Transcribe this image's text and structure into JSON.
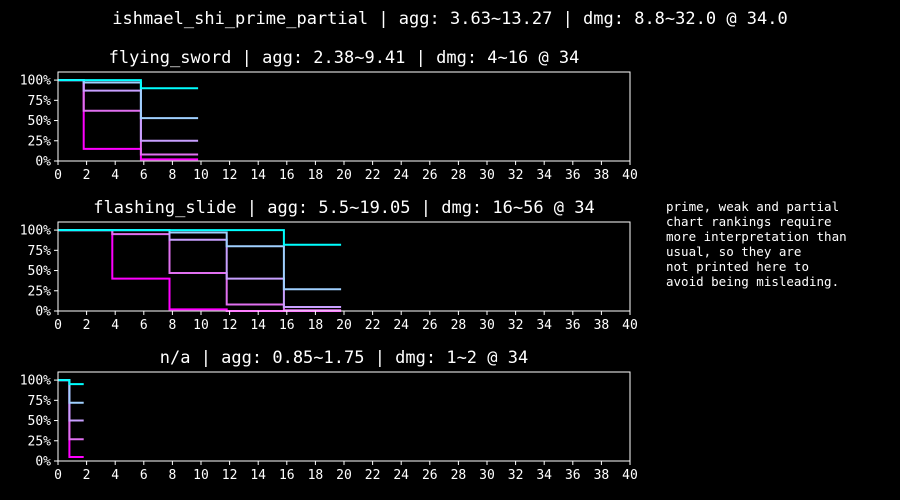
{
  "suptitle": "ishmael_shi_prime_partial | agg: 3.63~13.27 | dmg: 8.8~32.0 @ 34.0",
  "note": "prime, weak and partial\nchart rankings require\nmore interpretation than\nusual, so they are\nnot printed here to\navoid being misleading.",
  "colors": {
    "background": "#000000",
    "axes": "#ffffff",
    "text": "#ffffff"
  },
  "chart_data": [
    {
      "type": "line",
      "step": true,
      "title": "flying_sword | agg: 2.38~9.41 | dmg: 4~16 @ 34",
      "xlim": [
        0,
        40
      ],
      "ylim": [
        0,
        1.1
      ],
      "x_ticks": [
        "0",
        "2",
        "4",
        "6",
        "8",
        "10",
        "12",
        "14",
        "16",
        "18",
        "20",
        "22",
        "24",
        "26",
        "28",
        "30",
        "32",
        "34",
        "36",
        "38",
        "40"
      ],
      "y_ticks": [
        "0%",
        "25%",
        "50%",
        "75%",
        "100%"
      ],
      "y_tick_values": [
        0,
        0.25,
        0.5,
        0.75,
        1.0
      ],
      "series": [
        {
          "color": "#ff00ff",
          "x": [
            0,
            1.8,
            1.8,
            5.8,
            5.8,
            9.8
          ],
          "y": [
            1.0,
            1.0,
            0.15,
            0.15,
            0.02,
            0.02
          ]
        },
        {
          "color": "#e070f0",
          "x": [
            0,
            1.8,
            1.8,
            5.8,
            5.8,
            9.8
          ],
          "y": [
            1.0,
            1.0,
            0.62,
            0.62,
            0.08,
            0.08
          ]
        },
        {
          "color": "#c8a0ff",
          "x": [
            0,
            1.8,
            1.8,
            5.8,
            5.8,
            9.8
          ],
          "y": [
            1.0,
            1.0,
            0.87,
            0.87,
            0.25,
            0.25
          ]
        },
        {
          "color": "#a0d0ff",
          "x": [
            0,
            1.8,
            1.8,
            5.8,
            5.8,
            9.8
          ],
          "y": [
            1.0,
            1.0,
            0.97,
            0.97,
            0.53,
            0.53
          ]
        },
        {
          "color": "#00ffff",
          "x": [
            0,
            5.8,
            5.8,
            9.8
          ],
          "y": [
            1.0,
            1.0,
            0.9,
            0.9
          ]
        }
      ]
    },
    {
      "type": "line",
      "step": true,
      "title": "flashing_slide | agg: 5.5~19.05 | dmg: 16~56 @ 34",
      "xlim": [
        0,
        40
      ],
      "ylim": [
        0,
        1.1
      ],
      "x_ticks": [
        "0",
        "2",
        "4",
        "6",
        "8",
        "10",
        "12",
        "14",
        "16",
        "18",
        "20",
        "22",
        "24",
        "26",
        "28",
        "30",
        "32",
        "34",
        "36",
        "38",
        "40"
      ],
      "y_ticks": [
        "0%",
        "25%",
        "50%",
        "75%",
        "100%"
      ],
      "y_tick_values": [
        0,
        0.25,
        0.5,
        0.75,
        1.0
      ],
      "series": [
        {
          "color": "#ff00ff",
          "x": [
            0,
            3.8,
            3.8,
            7.8,
            7.8,
            11.8,
            11.8,
            19.8
          ],
          "y": [
            1.0,
            1.0,
            0.4,
            0.4,
            0.02,
            0.02,
            0.0,
            0.0
          ]
        },
        {
          "color": "#e070f0",
          "x": [
            0,
            3.8,
            3.8,
            7.8,
            7.8,
            11.8,
            11.8,
            15.8,
            15.8,
            19.8
          ],
          "y": [
            1.0,
            1.0,
            0.95,
            0.95,
            0.47,
            0.47,
            0.08,
            0.08,
            0.01,
            0.01
          ]
        },
        {
          "color": "#c8a0ff",
          "x": [
            0,
            7.8,
            7.8,
            11.8,
            11.8,
            15.8,
            15.8,
            19.8
          ],
          "y": [
            1.0,
            1.0,
            0.88,
            0.88,
            0.4,
            0.4,
            0.05,
            0.05
          ]
        },
        {
          "color": "#a0d0ff",
          "x": [
            0,
            7.8,
            7.8,
            11.8,
            11.8,
            15.8,
            15.8,
            19.8
          ],
          "y": [
            1.0,
            1.0,
            0.97,
            0.97,
            0.8,
            0.8,
            0.27,
            0.27
          ]
        },
        {
          "color": "#00ffff",
          "x": [
            0,
            15.8,
            15.8,
            19.8
          ],
          "y": [
            1.0,
            1.0,
            0.82,
            0.82
          ]
        }
      ]
    },
    {
      "type": "line",
      "step": true,
      "title": "n/a | agg: 0.85~1.75 | dmg: 1~2 @ 34",
      "xlim": [
        0,
        40
      ],
      "ylim": [
        0,
        1.1
      ],
      "x_ticks": [
        "0",
        "2",
        "4",
        "6",
        "8",
        "10",
        "12",
        "14",
        "16",
        "18",
        "20",
        "22",
        "24",
        "26",
        "28",
        "30",
        "32",
        "34",
        "36",
        "38",
        "40"
      ],
      "y_ticks": [
        "0%",
        "25%",
        "50%",
        "75%",
        "100%"
      ],
      "y_tick_values": [
        0,
        0.25,
        0.5,
        0.75,
        1.0
      ],
      "series": [
        {
          "color": "#ff00ff",
          "x": [
            0,
            0.8,
            0.8,
            1.8
          ],
          "y": [
            1.0,
            1.0,
            0.05,
            0.05
          ]
        },
        {
          "color": "#e070f0",
          "x": [
            0,
            0.8,
            0.8,
            1.8
          ],
          "y": [
            1.0,
            1.0,
            0.27,
            0.27
          ]
        },
        {
          "color": "#c8a0ff",
          "x": [
            0,
            0.8,
            0.8,
            1.8
          ],
          "y": [
            1.0,
            1.0,
            0.5,
            0.5
          ]
        },
        {
          "color": "#a0d0ff",
          "x": [
            0,
            0.8,
            0.8,
            1.8
          ],
          "y": [
            1.0,
            1.0,
            0.72,
            0.72
          ]
        },
        {
          "color": "#00ffff",
          "x": [
            0,
            0.8,
            0.8,
            1.8
          ],
          "y": [
            1.0,
            1.0,
            0.95,
            0.95
          ]
        }
      ]
    }
  ]
}
